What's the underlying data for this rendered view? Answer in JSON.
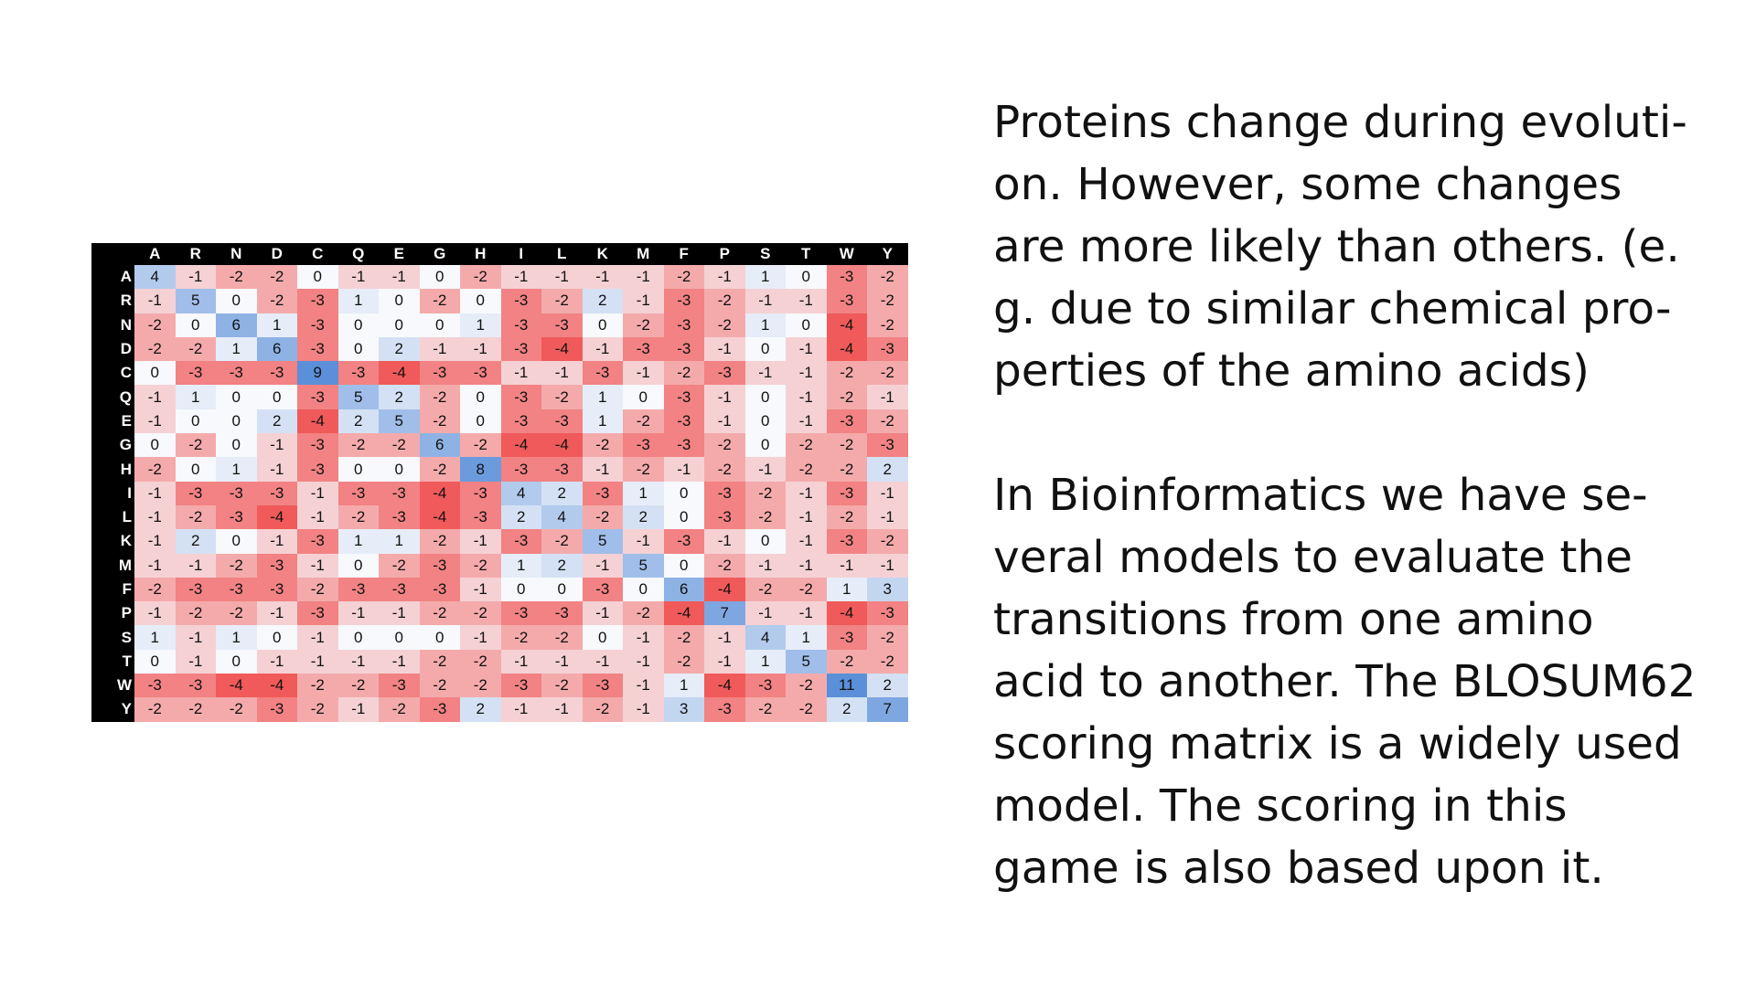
{
  "matrix": {
    "labels": [
      "A",
      "R",
      "N",
      "D",
      "C",
      "Q",
      "E",
      "G",
      "H",
      "I",
      "L",
      "K",
      "M",
      "F",
      "P",
      "S",
      "T",
      "W",
      "Y"
    ],
    "rows": [
      [
        4,
        -1,
        -2,
        -2,
        0,
        -1,
        -1,
        0,
        -2,
        -1,
        -1,
        -1,
        -1,
        -2,
        -1,
        1,
        0,
        -3,
        -2
      ],
      [
        -1,
        5,
        0,
        -2,
        -3,
        1,
        0,
        -2,
        0,
        -3,
        -2,
        2,
        -1,
        -3,
        -2,
        -1,
        -1,
        -3,
        -2
      ],
      [
        -2,
        0,
        6,
        1,
        -3,
        0,
        0,
        0,
        1,
        -3,
        -3,
        0,
        -2,
        -3,
        -2,
        1,
        0,
        -4,
        -2
      ],
      [
        -2,
        -2,
        1,
        6,
        -3,
        0,
        2,
        -1,
        -1,
        -3,
        -4,
        -1,
        -3,
        -3,
        -1,
        0,
        -1,
        -4,
        -3
      ],
      [
        0,
        -3,
        -3,
        -3,
        9,
        -3,
        -4,
        -3,
        -3,
        -1,
        -1,
        -3,
        -1,
        -2,
        -3,
        -1,
        -1,
        -2,
        -2
      ],
      [
        -1,
        1,
        0,
        0,
        -3,
        5,
        2,
        -2,
        0,
        -3,
        -2,
        1,
        0,
        -3,
        -1,
        0,
        -1,
        -2,
        -1
      ],
      [
        -1,
        0,
        0,
        2,
        -4,
        2,
        5,
        -2,
        0,
        -3,
        -3,
        1,
        -2,
        -3,
        -1,
        0,
        -1,
        -3,
        -2
      ],
      [
        0,
        -2,
        0,
        -1,
        -3,
        -2,
        -2,
        6,
        -2,
        -4,
        -4,
        -2,
        -3,
        -3,
        -2,
        0,
        -2,
        -2,
        -3
      ],
      [
        -2,
        0,
        1,
        -1,
        -3,
        0,
        0,
        -2,
        8,
        -3,
        -3,
        -1,
        -2,
        -1,
        -2,
        -1,
        -2,
        -2,
        2
      ],
      [
        -1,
        -3,
        -3,
        -3,
        -1,
        -3,
        -3,
        -4,
        -3,
        4,
        2,
        -3,
        1,
        0,
        -3,
        -2,
        -1,
        -3,
        -1
      ],
      [
        -1,
        -2,
        -3,
        -4,
        -1,
        -2,
        -3,
        -4,
        -3,
        2,
        4,
        -2,
        2,
        0,
        -3,
        -2,
        -1,
        -2,
        -1
      ],
      [
        -1,
        2,
        0,
        -1,
        -3,
        1,
        1,
        -2,
        -1,
        -3,
        -2,
        5,
        -1,
        -3,
        -1,
        0,
        -1,
        -3,
        -2
      ],
      [
        -1,
        -1,
        -2,
        -3,
        -1,
        0,
        -2,
        -3,
        -2,
        1,
        2,
        -1,
        5,
        0,
        -2,
        -1,
        -1,
        -1,
        -1
      ],
      [
        -2,
        -3,
        -3,
        -3,
        -2,
        -3,
        -3,
        -3,
        -1,
        0,
        0,
        -3,
        0,
        6,
        -4,
        -2,
        -2,
        1,
        3
      ],
      [
        -1,
        -2,
        -2,
        -1,
        -3,
        -1,
        -1,
        -2,
        -2,
        -3,
        -3,
        -1,
        -2,
        -4,
        7,
        -1,
        -1,
        -4,
        -3
      ],
      [
        1,
        -1,
        1,
        0,
        -1,
        0,
        0,
        0,
        -1,
        -2,
        -2,
        0,
        -1,
        -2,
        -1,
        4,
        1,
        -3,
        -2
      ],
      [
        0,
        -1,
        0,
        -1,
        -1,
        -1,
        -1,
        -2,
        -2,
        -1,
        -1,
        -1,
        -1,
        -2,
        -1,
        1,
        5,
        -2,
        -2
      ],
      [
        -3,
        -3,
        -4,
        -4,
        -2,
        -2,
        -3,
        -2,
        -2,
        -3,
        -2,
        -3,
        -1,
        1,
        -4,
        -3,
        -2,
        11,
        2
      ],
      [
        -2,
        -2,
        -2,
        -3,
        -2,
        -1,
        -2,
        -3,
        2,
        -1,
        -1,
        -2,
        -1,
        3,
        -3,
        -2,
        -2,
        2,
        7
      ]
    ],
    "colors": {
      "header_bg": "#000000",
      "header_text": "#ffffff",
      "negative": "#f05a5a",
      "neutral": "#f7f9fc",
      "positive": "#5b8fd9"
    }
  },
  "text": {
    "line_1": "Proteins change during evoluti-",
    "line_2": "on. However, some changes",
    "line_3": "are more likely than others. (e.",
    "line_4": "g. due to similar chemical pro-",
    "line_5": "perties of the amino acids)",
    "line_6": "In Bioinformatics we have se-",
    "line_7": "veral models to evaluate the",
    "line_8": "transitions from one amino",
    "line_9": "acid to another. The BLOSUM62",
    "line_10": "scoring matrix is a widely used",
    "line_11": "model. The scoring in this",
    "line_12": "game is also based upon it."
  }
}
